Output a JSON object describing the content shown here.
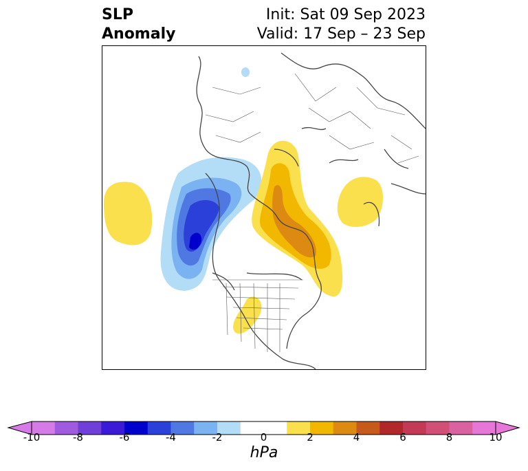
{
  "title": {
    "variable": "SLP",
    "variable2": "Anomaly",
    "init": "Init: Sat 09 Sep 2023",
    "valid": "Valid: 17 Sep – 23 Sep"
  },
  "colorbar": {
    "unit": "hPa",
    "ticks": [
      "-10",
      "-8",
      "-6",
      "-4",
      "-2",
      "0",
      "2",
      "4",
      "6",
      "8",
      "10"
    ],
    "colors": [
      "#d57ae6",
      "#a05ae0",
      "#6f3fd8",
      "#3a1ad6",
      "#0000cd",
      "#2a40d8",
      "#5078e3",
      "#7ab2f2",
      "#b3dcf7",
      "#ffffff",
      "#ffffff",
      "#fbe04d",
      "#f2b800",
      "#dd8a12",
      "#c65a1a",
      "#b0282a",
      "#c33a56",
      "#d05078",
      "#da62a2",
      "#e676d8"
    ]
  },
  "map": {
    "features": [
      {
        "name": "blue-anomaly-west-canada",
        "sign": "negative",
        "peak": -6
      },
      {
        "name": "yellow-anomaly-pacific",
        "sign": "positive",
        "peak": 2
      },
      {
        "name": "orange-anomaly-greenland",
        "sign": "positive",
        "peak": 4
      },
      {
        "name": "yellow-anomaly-siberia",
        "sign": "positive",
        "peak": 2
      },
      {
        "name": "yellow-anomaly-us-plains",
        "sign": "positive",
        "peak": 2
      }
    ]
  }
}
